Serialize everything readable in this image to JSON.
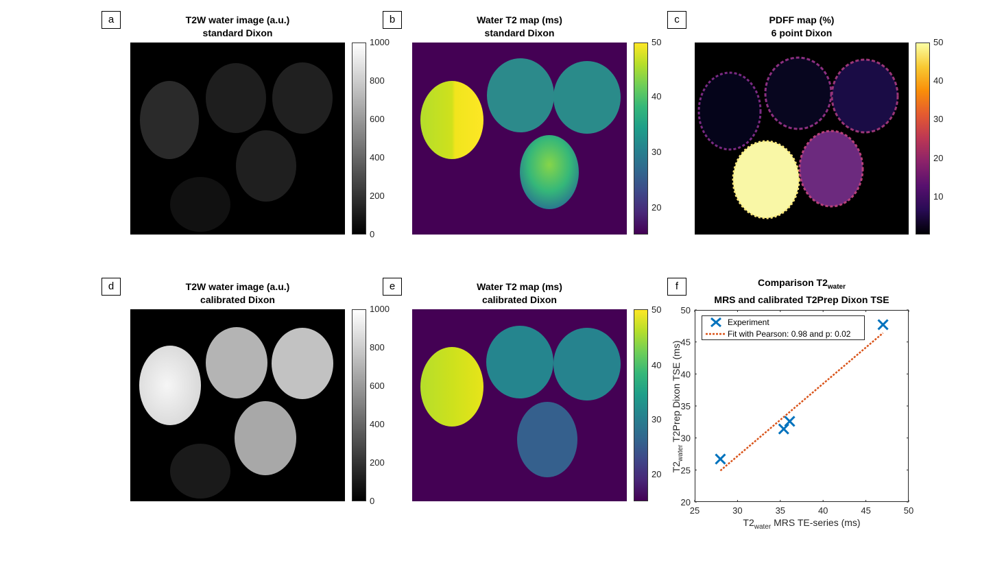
{
  "panels": {
    "a": {
      "label": "a",
      "title1": "T2W water image (a.u.)",
      "title2": "standard Dixon"
    },
    "b": {
      "label": "b",
      "title1": "Water T2 map (ms)",
      "title2": "standard Dixon"
    },
    "c": {
      "label": "c",
      "title1": "PDFF map (%)",
      "title2": "6 point Dixon"
    },
    "d": {
      "label": "d",
      "title1": "T2W water image (a.u.)",
      "title2": "calibrated Dixon"
    },
    "e": {
      "label": "e",
      "title1": "Water T2 map (ms)",
      "title2": "calibrated Dixon"
    },
    "f": {
      "label": "f",
      "title_pre": "Comparison T2",
      "title_sub": "water",
      "title2": "MRS and calibrated T2Prep Dixon TSE"
    }
  },
  "colorbars": {
    "gray_ticks": [
      "1000",
      "800",
      "600",
      "400",
      "200",
      "0"
    ],
    "t2_ticks": [
      "50",
      "40",
      "30",
      "20"
    ],
    "pdff_ticks": [
      "50",
      "40",
      "30",
      "20",
      "10"
    ]
  },
  "colors": {
    "viridis_top": "#fde725",
    "viridis_bottom": "#440154",
    "inferno_top": "#fcffa4",
    "inferno_bottom": "#000004",
    "series_marker": "#0072bd",
    "fit_line": "#d95319"
  },
  "chart_data": {
    "type": "scatter",
    "xlim": [
      25,
      50
    ],
    "ylim": [
      20,
      50
    ],
    "xticks": [
      "25",
      "30",
      "35",
      "40",
      "45",
      "50"
    ],
    "yticks": [
      "50",
      "45",
      "40",
      "35",
      "30",
      "25",
      "20"
    ],
    "xlabel_pre": "T2",
    "xlabel_sub": "water",
    "xlabel_post": " MRS TE-series (ms)",
    "ylabel_pre": "T2",
    "ylabel_sub": "water",
    "ylabel_post": " T2Prep Dixon TSE (ms)",
    "legend_position": "top-left",
    "series": [
      {
        "name": "Experiment",
        "points": [
          [
            28.0,
            26.7
          ],
          [
            35.4,
            31.4
          ],
          [
            36.1,
            32.6
          ],
          [
            47.0,
            47.7
          ]
        ]
      },
      {
        "name": "Fit with Pearson: 0.98 and p: 0.02",
        "line": [
          [
            28.0,
            24.9
          ],
          [
            47.0,
            46.4
          ]
        ]
      }
    ]
  }
}
